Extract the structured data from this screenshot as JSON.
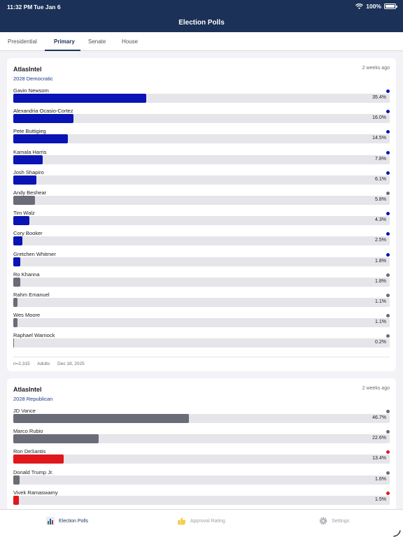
{
  "status": {
    "time": "11:32 PM",
    "date": "Tue Jan 6",
    "battery": "100%"
  },
  "app": {
    "title": "Election Polls"
  },
  "tabs": [
    {
      "label": "Presidential",
      "active": false
    },
    {
      "label": "Primary",
      "active": true
    },
    {
      "label": "Senate",
      "active": false
    },
    {
      "label": "House",
      "active": false
    }
  ],
  "colors": {
    "dem": "#0a14b4",
    "rep": "#e0181c",
    "other": "#6a6d77",
    "header": "#1b3157"
  },
  "polls": [
    {
      "pollster": "AtlasIntel",
      "age": "2 weeks ago",
      "race": "2028 Democratic",
      "candidates": [
        {
          "name": "Gavin Newsom",
          "pct": "35.4%",
          "value": 35.4,
          "party": "dem"
        },
        {
          "name": "Alexandria Ocasio-Cortez",
          "pct": "16.0%",
          "value": 16.0,
          "party": "dem"
        },
        {
          "name": "Pete Buttigieg",
          "pct": "14.5%",
          "value": 14.5,
          "party": "dem"
        },
        {
          "name": "Kamala Harris",
          "pct": "7.8%",
          "value": 7.8,
          "party": "dem"
        },
        {
          "name": "Josh Shapiro",
          "pct": "6.1%",
          "value": 6.1,
          "party": "dem"
        },
        {
          "name": "Andy Beshear",
          "pct": "5.8%",
          "value": 5.8,
          "party": "other"
        },
        {
          "name": "Tim Walz",
          "pct": "4.3%",
          "value": 4.3,
          "party": "dem"
        },
        {
          "name": "Cory Booker",
          "pct": "2.5%",
          "value": 2.5,
          "party": "dem"
        },
        {
          "name": "Gretchen Whitmer",
          "pct": "1.8%",
          "value": 1.8,
          "party": "dem"
        },
        {
          "name": "Ro Khanna",
          "pct": "1.8%",
          "value": 1.8,
          "party": "other"
        },
        {
          "name": "Rahm Emanuel",
          "pct": "1.1%",
          "value": 1.1,
          "party": "other"
        },
        {
          "name": "Wes Moore",
          "pct": "1.1%",
          "value": 1.1,
          "party": "other"
        },
        {
          "name": "Raphael Warnock",
          "pct": "0.2%",
          "value": 0.2,
          "party": "other"
        }
      ],
      "sample": "n=2,315",
      "population": "Adults",
      "date": "Dec 18, 2025"
    },
    {
      "pollster": "AtlasIntel",
      "age": "2 weeks ago",
      "race": "2028 Republican",
      "candidates": [
        {
          "name": "JD Vance",
          "pct": "46.7%",
          "value": 46.7,
          "party": "other"
        },
        {
          "name": "Marco Rubio",
          "pct": "22.6%",
          "value": 22.6,
          "party": "other"
        },
        {
          "name": "Ron DeSantis",
          "pct": "13.4%",
          "value": 13.4,
          "party": "rep"
        },
        {
          "name": "Donald Trump Jr.",
          "pct": "1.6%",
          "value": 1.6,
          "party": "other"
        },
        {
          "name": "Vivek Ramaswamy",
          "pct": "1.5%",
          "value": 1.5,
          "party": "rep"
        }
      ]
    }
  ],
  "tabbar": [
    {
      "label": "Election Polls",
      "icon": "bar-chart-icon",
      "active": true
    },
    {
      "label": "Approval Rating",
      "icon": "thumbs-up-icon",
      "active": false
    },
    {
      "label": "Settings",
      "icon": "gear-icon",
      "active": false
    }
  ]
}
